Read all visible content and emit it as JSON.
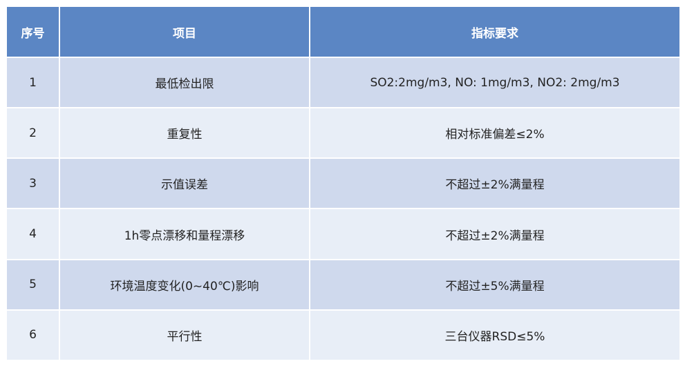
{
  "table": {
    "header": [
      "序号",
      "项目",
      "指标要求"
    ],
    "rows": [
      [
        "1",
        "最低检出限",
        "SO2:2mg/m3, NO: 1mg/m3, NO2: 2mg/m3"
      ],
      [
        "2",
        "重复性",
        "相对标准偏差≤2%"
      ],
      [
        "3",
        "示值误差",
        "不超过±2%满量程"
      ],
      [
        "4",
        "1h零点漂移和量程漂移",
        "不超过±2%满量程"
      ],
      [
        "5",
        "环境温度变化(0~40℃)影响",
        "不超过±5%满量程"
      ],
      [
        "6",
        "平行性",
        "三台仪器RSD≤5%"
      ]
    ]
  }
}
